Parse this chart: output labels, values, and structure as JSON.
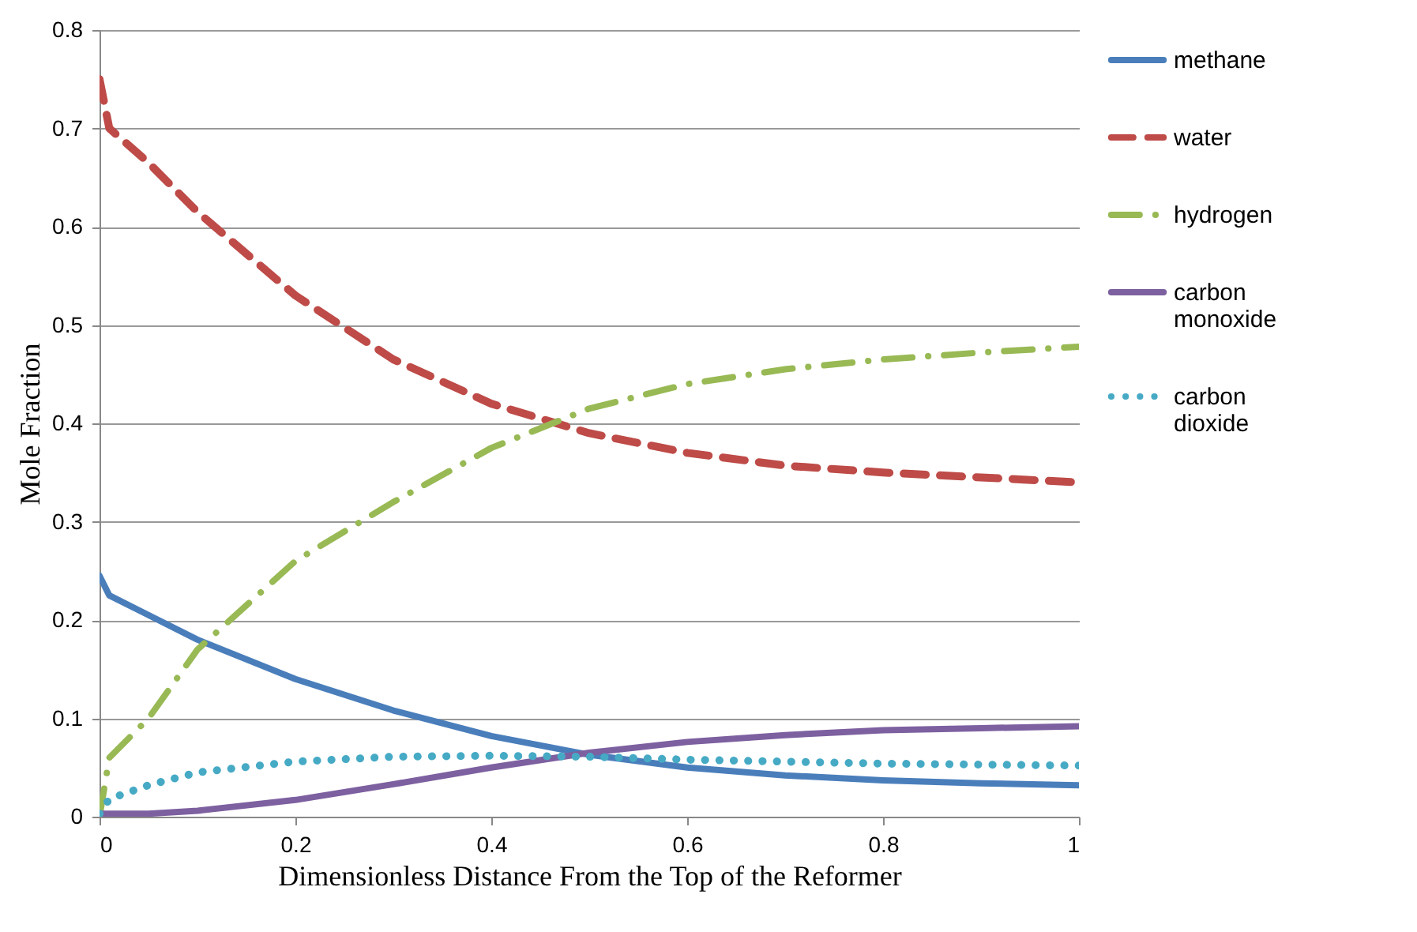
{
  "chart_data": {
    "type": "line",
    "xlabel": "Dimensionless Distance From the Top of the Reformer",
    "ylabel": "Mole Fraction",
    "x": [
      0,
      0.01,
      0.05,
      0.1,
      0.2,
      0.3,
      0.4,
      0.5,
      0.6,
      0.7,
      0.8,
      0.9,
      1
    ],
    "series": [
      {
        "name": "methane",
        "color": "#4a7ebb",
        "line_style": "solid",
        "values": [
          0.245,
          0.225,
          0.205,
          0.18,
          0.14,
          0.108,
          0.082,
          0.063,
          0.05,
          0.042,
          0.037,
          0.034,
          0.032
        ]
      },
      {
        "name": "water",
        "color": "#be4b48",
        "line_style": "dashed",
        "values": [
          0.75,
          0.7,
          0.665,
          0.615,
          0.53,
          0.465,
          0.42,
          0.39,
          0.37,
          0.357,
          0.35,
          0.345,
          0.34
        ]
      },
      {
        "name": "hydrogen",
        "color": "#98b954",
        "line_style": "dashdot",
        "values": [
          0,
          0.06,
          0.1,
          0.17,
          0.26,
          0.32,
          0.375,
          0.415,
          0.44,
          0.455,
          0.465,
          0.472,
          0.478
        ]
      },
      {
        "name": "carbon monoxide",
        "color": "#7d60a0",
        "line_style": "solid",
        "values": [
          0.003,
          0.003,
          0.003,
          0.006,
          0.017,
          0.033,
          0.05,
          0.065,
          0.076,
          0.083,
          0.088,
          0.09,
          0.092
        ]
      },
      {
        "name": "carbon dioxide",
        "color": "#46aac5",
        "line_style": "dotted",
        "values": [
          0.003,
          0.018,
          0.032,
          0.045,
          0.056,
          0.061,
          0.062,
          0.061,
          0.058,
          0.056,
          0.054,
          0.053,
          0.052
        ]
      }
    ],
    "xlim": [
      0,
      1
    ],
    "xticks": [
      0,
      0.2,
      0.4,
      0.6,
      0.8,
      1
    ],
    "ylim": [
      0,
      0.8
    ],
    "yticks": [
      0,
      0.1,
      0.2,
      0.3,
      0.4,
      0.5,
      0.6,
      0.7,
      0.8
    ],
    "grid": "y",
    "legend": "right",
    "marker": "none"
  }
}
